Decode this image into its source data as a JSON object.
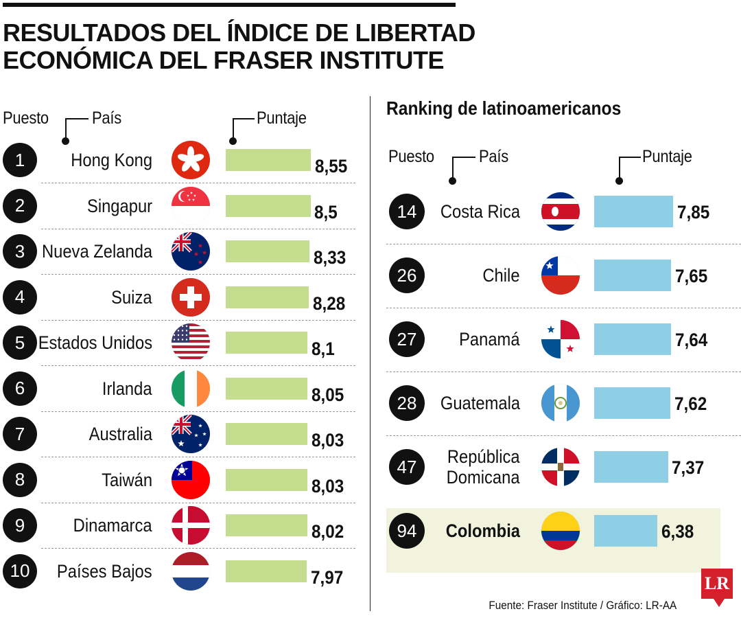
{
  "title_line1": "RESULTADOS DEL ÍNDICE DE LIBERTAD",
  "title_line2": "ECONÓMICA DEL FRASER INSTITUTE",
  "left": {
    "col_rank": "Puesto",
    "col_country": "País",
    "col_score": "Puntaje"
  },
  "right": {
    "title": "Ranking de latinoamericanos",
    "col_rank": "Puesto",
    "col_country": "País",
    "col_score": "Puntaje"
  },
  "footer": "Fuente: Fraser Institute / Gráfico: LR-AA",
  "logo_text": "LR",
  "colors": {
    "left_bar": "#c5dd8e",
    "right_bar": "#8ecfe6",
    "highlight": "#f1f3dd"
  },
  "chart_data": [
    {
      "type": "bar",
      "orientation": "horizontal",
      "categories": [
        "Hong Kong",
        "Singapur",
        "Nueva Zelanda",
        "Suiza",
        "Estados Unidos",
        "Irlanda",
        "Australia",
        "Taiwán",
        "Dinamarca",
        "Países Bajos"
      ],
      "ranks": [
        "1",
        "2",
        "3",
        "4",
        "5",
        "6",
        "7",
        "8",
        "9",
        "10"
      ],
      "values": [
        8.55,
        8.5,
        8.33,
        8.28,
        8.1,
        8.05,
        8.03,
        8.03,
        8.02,
        7.97
      ],
      "value_labels": [
        "8,55",
        "8,5",
        "8,33",
        "8,28",
        "8,1",
        "8,05",
        "8,03",
        "8,03",
        "8,02",
        "7,97"
      ],
      "flags": [
        "hong-kong",
        "singapore",
        "new-zealand",
        "switzerland",
        "usa",
        "ireland",
        "australia",
        "taiwan",
        "denmark",
        "netherlands"
      ],
      "xlim": [
        7.97,
        8.55
      ]
    },
    {
      "type": "bar",
      "orientation": "horizontal",
      "title": "Ranking de latinoamericanos",
      "categories": [
        "Costa Rica",
        "Chile",
        "Panamá",
        "Guatemala",
        "República Domicana",
        "Colombia"
      ],
      "category_lines": [
        [
          "Costa Rica"
        ],
        [
          "Chile"
        ],
        [
          "Panamá"
        ],
        [
          "Guatemala"
        ],
        [
          "República",
          "Domicana"
        ],
        [
          "Colombia"
        ]
      ],
      "ranks": [
        "14",
        "26",
        "27",
        "28",
        "47",
        "94"
      ],
      "values": [
        7.85,
        7.65,
        7.64,
        7.62,
        7.37,
        6.38
      ],
      "value_labels": [
        "7,85",
        "7,65",
        "7,64",
        "7,62",
        "7,37",
        "6,38"
      ],
      "flags": [
        "costa-rica",
        "chile",
        "panama",
        "guatemala",
        "dominican-republic",
        "colombia"
      ],
      "highlighted": "Colombia"
    }
  ]
}
